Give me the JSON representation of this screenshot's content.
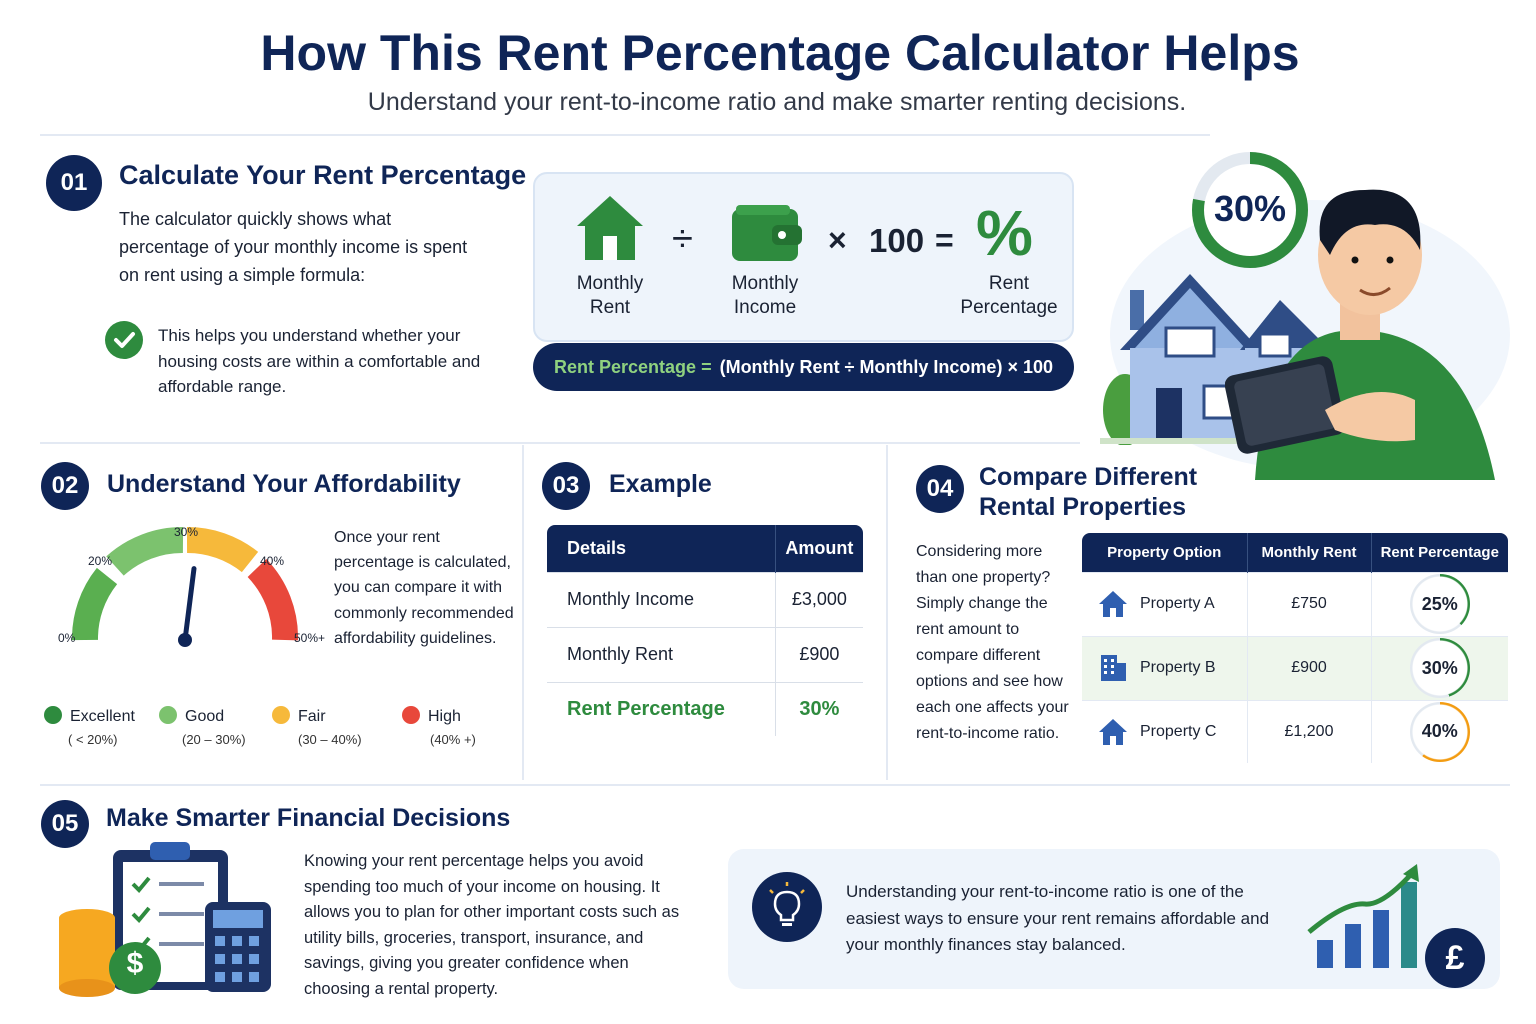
{
  "header": {
    "title": "How This Rent Percentage Calculator Helps",
    "subtitle": "Understand your rent-to-income ratio and make smarter renting decisions."
  },
  "section1": {
    "number": "01",
    "title": "Calculate Your Rent Percentage",
    "body": "The calculator quickly shows what percentage of your monthly income is spent on rent using a simple formula:",
    "check_text": "This helps you understand whether your housing costs are within a comfortable and affordable range.",
    "formula": {
      "rent_label": "Monthly Rent",
      "divide": "÷",
      "income_label": "Monthly Income",
      "times": "×",
      "hundred": "100",
      "equals": "=",
      "percent_symbol": "%",
      "result_label": "Rent Percentage",
      "bar_green": "Rent Percentage =",
      "bar_white": "(Monthly Rent ÷ Monthly Income) × 100"
    },
    "illustration_percent": "30%",
    "illustration_percent_value": 30
  },
  "section2": {
    "number": "02",
    "title": "Understand Your Affordability",
    "body": "Once your rent percentage is calculated, you can compare it with commonly recommended affordability guidelines.",
    "gauge": {
      "ticks": [
        "0%",
        "20%",
        "30%",
        "40%",
        "50%+"
      ],
      "needle_value": 27
    },
    "legend": [
      {
        "label": "Excellent",
        "range": "( < 20%)",
        "color": "#2e8b3e"
      },
      {
        "label": "Good",
        "range": "(20 – 30%)",
        "color": "#7cc26e"
      },
      {
        "label": "Fair",
        "range": "(30 – 40%)",
        "color": "#f6b93b"
      },
      {
        "label": "High",
        "range": "(40% +)",
        "color": "#e8483b"
      }
    ]
  },
  "section3": {
    "number": "03",
    "title": "Example",
    "headers": [
      "Details",
      "Amount"
    ],
    "rows": [
      [
        "Monthly Income",
        "£3,000"
      ],
      [
        "Monthly Rent",
        "£900"
      ],
      [
        "Rent Percentage",
        "30%"
      ]
    ]
  },
  "section4": {
    "number": "04",
    "title_line1": "Compare Different",
    "title_line2": "Rental Properties",
    "body": "Considering more than one property? Simply change the rent amount to compare different options and see how each one affects your rent-to-income ratio.",
    "headers": [
      "Property Option",
      "Monthly Rent",
      "Rent Percentage"
    ],
    "rows": [
      {
        "name": "Property A",
        "rent": "£750",
        "pct": "25%",
        "value": 25,
        "color": "#2e8b3e",
        "icon": "house-icon"
      },
      {
        "name": "Property B",
        "rent": "£900",
        "pct": "30%",
        "value": 30,
        "color": "#2e8b3e",
        "icon": "building-icon"
      },
      {
        "name": "Property C",
        "rent": "£1,200",
        "pct": "40%",
        "value": 40,
        "color": "#f39c12",
        "icon": "house-icon"
      }
    ]
  },
  "section5": {
    "number": "05",
    "title": "Make Smarter Financial Decisions",
    "body": "Knowing your rent percentage helps you avoid spending too much of your income on housing. It allows you to plan for other important costs such as utility bills, groceries, transport, insurance, and savings, giving you greater confidence when choosing a rental property.",
    "tip": "Understanding your rent-to-income ratio is one of the easiest ways to ensure your rent remains affordable and your monthly finances stay balanced.",
    "dollar_symbol": "$",
    "pound_symbol": "£"
  },
  "colors": {
    "navy": "#0f2557",
    "green": "#2e8b3e",
    "light_green": "#7cc26e",
    "yellow": "#f6b93b",
    "red": "#e8483b",
    "panel_blue": "#eef4fb"
  }
}
